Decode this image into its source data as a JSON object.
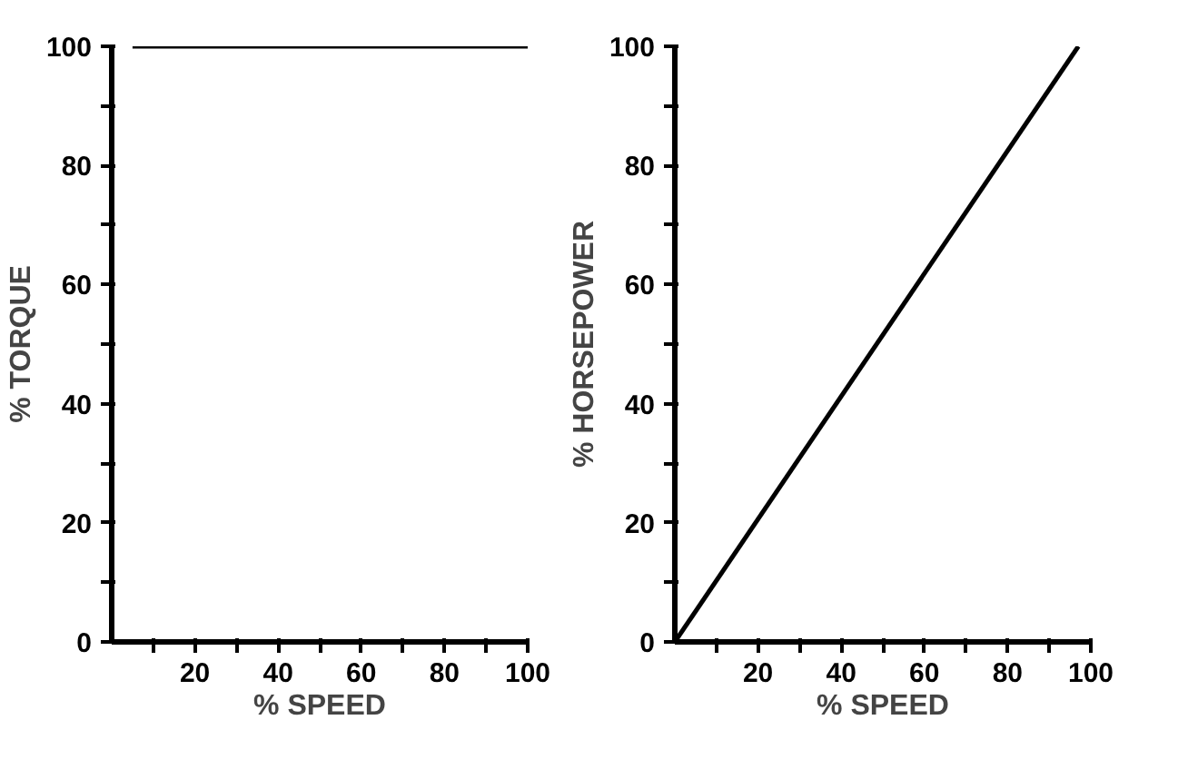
{
  "chart_data": [
    {
      "type": "line",
      "xlabel": "% SPEED",
      "ylabel": "% TORQUE",
      "x": [
        5,
        100
      ],
      "values": [
        100,
        100
      ],
      "color": "#000000",
      "xlim": [
        0,
        100
      ],
      "ylim": [
        0,
        100
      ],
      "xticks": [
        {
          "value": 10,
          "label": null
        },
        20,
        {
          "value": 30,
          "label": null
        },
        40,
        {
          "value": 50,
          "label": null
        },
        60,
        {
          "value": 70,
          "label": null
        },
        80,
        {
          "value": 90,
          "label": null
        },
        100
      ],
      "yticks": [
        0,
        {
          "value": 10,
          "label": null
        },
        20,
        {
          "value": 30,
          "label": null
        },
        40,
        {
          "value": 50,
          "label": null
        },
        60,
        {
          "value": 70,
          "label": null
        },
        80,
        {
          "value": 90,
          "label": null
        },
        100
      ],
      "grid": false,
      "marker": "none",
      "line_style": "solid"
    },
    {
      "type": "line",
      "xlabel": "% SPEED",
      "ylabel": "% HORSEPOWER",
      "x": [
        0,
        97
      ],
      "values": [
        0,
        100
      ],
      "color": "#000000",
      "xlim": [
        0,
        100
      ],
      "ylim": [
        0,
        100
      ],
      "xticks": [
        {
          "value": 10,
          "label": null
        },
        20,
        {
          "value": 30,
          "label": null
        },
        40,
        {
          "value": 50,
          "label": null
        },
        60,
        {
          "value": 70,
          "label": null
        },
        80,
        {
          "value": 90,
          "label": null
        },
        100
      ],
      "yticks": [
        0,
        {
          "value": 10,
          "label": null
        },
        20,
        {
          "value": 30,
          "label": null
        },
        40,
        {
          "value": 50,
          "label": null
        },
        60,
        {
          "value": 70,
          "label": null
        },
        80,
        {
          "value": 90,
          "label": null
        },
        100
      ],
      "grid": false,
      "marker": "none",
      "line_style": "solid"
    }
  ]
}
